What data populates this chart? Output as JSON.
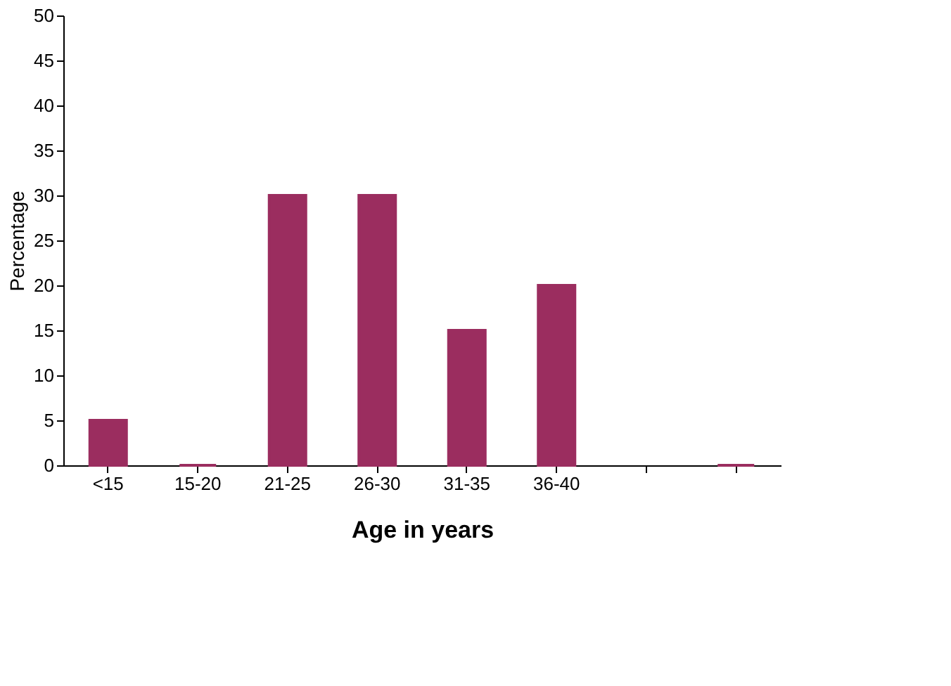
{
  "chart_data": {
    "type": "bar",
    "xlabel": "Age in years",
    "ylabel": "Percentage",
    "categories": [
      "<15",
      "15-20",
      "21-25",
      "26-30",
      "31-35",
      "36-40",
      null,
      null
    ],
    "values": [
      5,
      0,
      30,
      30,
      15,
      20,
      null,
      0
    ],
    "color": "#9b2d5f",
    "ylim": [
      0,
      50
    ],
    "yticks": [
      0,
      5,
      10,
      15,
      20,
      25,
      30,
      35,
      40,
      45,
      50
    ],
    "grid": false
  }
}
